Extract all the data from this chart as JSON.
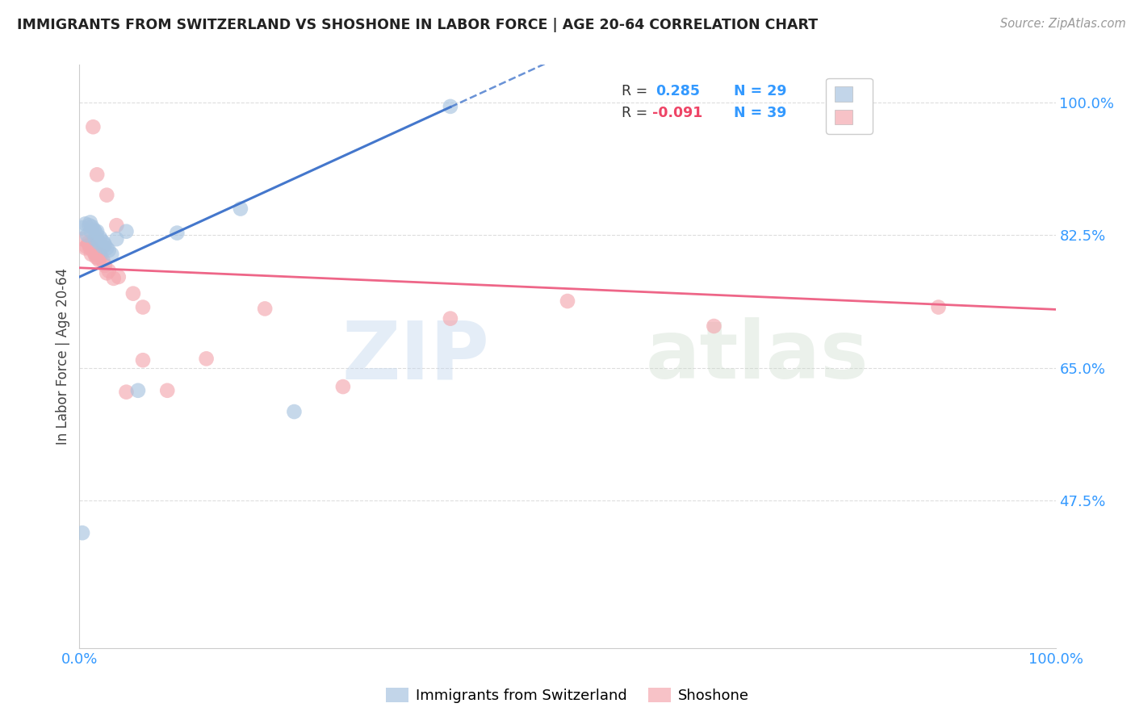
{
  "title": "IMMIGRANTS FROM SWITZERLAND VS SHOSHONE IN LABOR FORCE | AGE 20-64 CORRELATION CHART",
  "source": "Source: ZipAtlas.com",
  "ylabel": "In Labor Force | Age 20-64",
  "xlim": [
    0.0,
    1.0
  ],
  "ylim": [
    0.28,
    1.05
  ],
  "yticks": [
    0.475,
    0.65,
    0.825,
    1.0
  ],
  "ytick_labels": [
    "47.5%",
    "65.0%",
    "82.5%",
    "100.0%"
  ],
  "xticks": [
    0.0,
    0.2,
    0.4,
    0.6,
    0.8,
    1.0
  ],
  "xtick_labels": [
    "0.0%",
    "",
    "",
    "",
    "",
    "100.0%"
  ],
  "blue_color": "#A8C4E0",
  "pink_color": "#F4A8B0",
  "line_blue": "#4477CC",
  "line_pink": "#EE6688",
  "swiss_x": [
    0.003,
    0.006,
    0.008,
    0.01,
    0.011,
    0.012,
    0.013,
    0.015,
    0.016,
    0.017,
    0.018,
    0.019,
    0.02,
    0.021,
    0.023,
    0.024,
    0.025,
    0.026,
    0.028,
    0.03,
    0.033,
    0.038,
    0.048,
    0.06,
    0.1,
    0.165,
    0.22,
    0.38,
    0.003
  ],
  "swiss_y": [
    0.835,
    0.84,
    0.825,
    0.838,
    0.842,
    0.83,
    0.836,
    0.832,
    0.82,
    0.828,
    0.83,
    0.818,
    0.815,
    0.822,
    0.818,
    0.81,
    0.815,
    0.812,
    0.808,
    0.805,
    0.8,
    0.82,
    0.83,
    0.62,
    0.828,
    0.86,
    0.592,
    0.995,
    0.432
  ],
  "shoshone_x": [
    0.003,
    0.006,
    0.007,
    0.009,
    0.01,
    0.011,
    0.012,
    0.013,
    0.014,
    0.015,
    0.016,
    0.017,
    0.018,
    0.019,
    0.02,
    0.021,
    0.022,
    0.024,
    0.026,
    0.028,
    0.03,
    0.035,
    0.04,
    0.055,
    0.065,
    0.09,
    0.13,
    0.19,
    0.27,
    0.38,
    0.5,
    0.65,
    0.88,
    0.014,
    0.018,
    0.028,
    0.038,
    0.048,
    0.065
  ],
  "shoshone_y": [
    0.82,
    0.808,
    0.81,
    0.815,
    0.812,
    0.808,
    0.8,
    0.81,
    0.806,
    0.802,
    0.8,
    0.796,
    0.8,
    0.795,
    0.792,
    0.8,
    0.798,
    0.792,
    0.785,
    0.775,
    0.778,
    0.768,
    0.77,
    0.748,
    0.66,
    0.62,
    0.662,
    0.728,
    0.625,
    0.715,
    0.738,
    0.705,
    0.73,
    0.968,
    0.905,
    0.878,
    0.838,
    0.618,
    0.73
  ],
  "watermark_zip": "ZIP",
  "watermark_atlas": "atlas",
  "background_color": "#ffffff",
  "grid_color": "#dddddd",
  "blue_intercept": 0.77,
  "blue_slope": 0.59,
  "pink_intercept": 0.782,
  "pink_slope": -0.055
}
